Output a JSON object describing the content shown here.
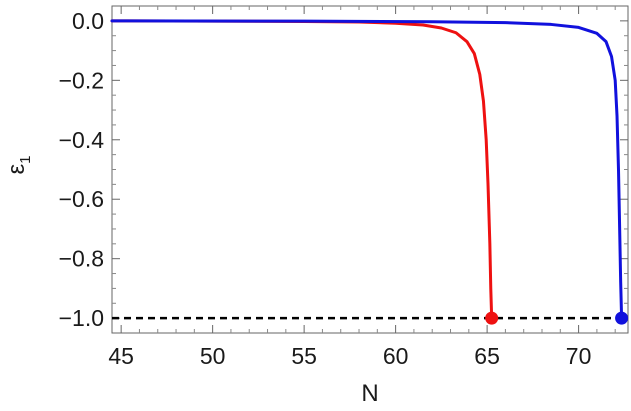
{
  "chart_data": {
    "type": "line",
    "xlabel": "N",
    "ylabel": "ε",
    "ylabel_subscript": "1",
    "xlim": [
      44.5,
      72.7
    ],
    "ylim": [
      -1.05,
      0.05
    ],
    "x_ticks": [
      45,
      50,
      55,
      60,
      65,
      70
    ],
    "x_tick_labels": [
      "45",
      "50",
      "55",
      "60",
      "65",
      "70"
    ],
    "y_ticks": [
      0.0,
      -0.2,
      -0.4,
      -0.6,
      -0.8,
      -1.0
    ],
    "y_tick_labels": [
      "0.0",
      "−0.2",
      "−0.4",
      "−0.6",
      "−0.8",
      "−1.0"
    ],
    "grid": false,
    "legend": "none",
    "series": [
      {
        "color": "#ee1111",
        "x": [
          44.5,
          50,
          55,
          58,
          60,
          61.5,
          62.5,
          63.3,
          63.9,
          64.3,
          64.6,
          64.8,
          64.95,
          65.05,
          65.15,
          65.2,
          65.25
        ],
        "y": [
          0.0,
          -0.001,
          -0.002,
          -0.004,
          -0.008,
          -0.014,
          -0.024,
          -0.04,
          -0.07,
          -0.11,
          -0.18,
          -0.27,
          -0.4,
          -0.55,
          -0.75,
          -0.9,
          -1.0
        ],
        "endpoint": {
          "x": 65.25,
          "y": -1.0
        }
      },
      {
        "color": "#1111dd",
        "x": [
          44.5,
          55,
          62,
          66,
          68.5,
          70,
          71,
          71.5,
          71.8,
          72.0,
          72.1,
          72.18,
          72.25,
          72.3,
          72.35
        ],
        "y": [
          0.0,
          -0.001,
          -0.003,
          -0.006,
          -0.012,
          -0.022,
          -0.042,
          -0.07,
          -0.12,
          -0.2,
          -0.32,
          -0.5,
          -0.72,
          -0.88,
          -1.0
        ],
        "endpoint": {
          "x": 72.35,
          "y": -1.0
        }
      }
    ],
    "reference_lines": [
      {
        "y": -1.0,
        "style": "dashed",
        "color": "#000000"
      }
    ]
  }
}
